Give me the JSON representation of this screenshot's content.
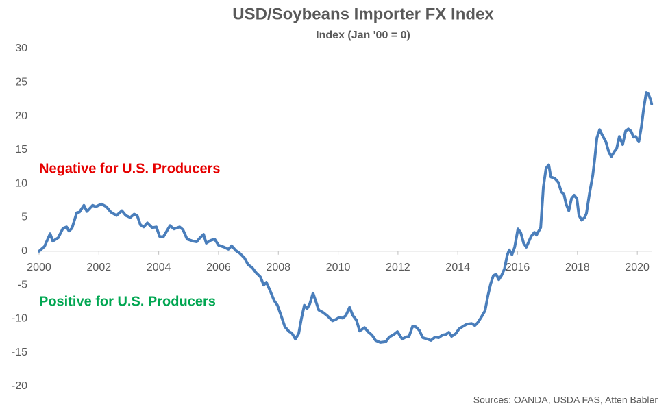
{
  "chart_data": {
    "type": "line",
    "title": "USD/Soybeans Importer FX Index",
    "subtitle": "Index (Jan '00 = 0)",
    "annotations": [
      {
        "text": "Negative for U.S. Producers",
        "color": "#e60000"
      },
      {
        "text": "Positive for U.S. Producers",
        "color": "#00a651"
      }
    ],
    "source": "Sources: OANDA, USDA FAS, Atten Babler",
    "color": "#4a7ebb",
    "xlim": [
      2000,
      2020.5
    ],
    "xticks": [
      2000,
      2002,
      2004,
      2006,
      2008,
      2010,
      2012,
      2014,
      2016,
      2018,
      2020
    ],
    "ylim": [
      -20,
      30
    ],
    "yticks": [
      -20,
      -15,
      -10,
      -5,
      0,
      5,
      10,
      15,
      20,
      25,
      30
    ],
    "x": [
      2000.0,
      2000.18,
      2000.37,
      2000.46,
      2000.64,
      2000.8,
      2000.92,
      2001.0,
      2001.1,
      2001.26,
      2001.35,
      2001.5,
      2001.6,
      2001.79,
      2001.9,
      2002.08,
      2002.25,
      2002.4,
      2002.59,
      2002.77,
      2002.9,
      2003.05,
      2003.18,
      2003.28,
      2003.39,
      2003.5,
      2003.62,
      2003.78,
      2003.92,
      2004.03,
      2004.15,
      2004.38,
      2004.51,
      2004.7,
      2004.81,
      2004.95,
      2005.15,
      2005.27,
      2005.38,
      2005.5,
      2005.59,
      2005.73,
      2005.87,
      2006.0,
      2006.19,
      2006.33,
      2006.44,
      2006.58,
      2006.71,
      2006.87,
      2006.99,
      2007.12,
      2007.26,
      2007.4,
      2007.51,
      2007.6,
      2007.74,
      2007.86,
      2007.97,
      2008.09,
      2008.22,
      2008.36,
      2008.45,
      2008.57,
      2008.68,
      2008.77,
      2008.87,
      2008.96,
      2009.05,
      2009.16,
      2009.26,
      2009.35,
      2009.51,
      2009.65,
      2009.81,
      2009.92,
      2010.03,
      2010.15,
      2010.26,
      2010.38,
      2010.49,
      2010.61,
      2010.72,
      2010.88,
      2011.02,
      2011.13,
      2011.25,
      2011.41,
      2011.59,
      2011.71,
      2011.87,
      2011.98,
      2012.14,
      2012.26,
      2012.37,
      2012.49,
      2012.6,
      2012.71,
      2012.83,
      2012.99,
      2013.1,
      2013.24,
      2013.36,
      2013.49,
      2013.61,
      2013.7,
      2013.79,
      2013.93,
      2014.04,
      2014.18,
      2014.3,
      2014.46,
      2014.57,
      2014.66,
      2014.78,
      2014.91,
      2015.01,
      2015.1,
      2015.19,
      2015.28,
      2015.37,
      2015.46,
      2015.56,
      2015.65,
      2015.72,
      2015.81,
      2015.9,
      2016.01,
      2016.1,
      2016.2,
      2016.29,
      2016.45,
      2016.56,
      2016.63,
      2016.77,
      2016.86,
      2016.95,
      2017.04,
      2017.11,
      2017.24,
      2017.36,
      2017.46,
      2017.55,
      2017.62,
      2017.71,
      2017.8,
      2017.89,
      2017.98,
      2018.05,
      2018.14,
      2018.24,
      2018.3,
      2018.4,
      2018.51,
      2018.58,
      2018.65,
      2018.74,
      2018.83,
      2018.95,
      2019.04,
      2019.13,
      2019.24,
      2019.31,
      2019.4,
      2019.51,
      2019.61,
      2019.7,
      2019.79,
      2019.88,
      2019.95,
      2020.05,
      2020.14,
      2020.21,
      2020.3,
      2020.37,
      2020.44,
      2020.48
    ],
    "values": [
      0,
      0.7,
      2.6,
      1.5,
      2.0,
      3.4,
      3.6,
      3.0,
      3.4,
      5.7,
      5.8,
      6.8,
      5.9,
      6.8,
      6.6,
      7.0,
      6.6,
      5.8,
      5.3,
      6.0,
      5.3,
      5.0,
      5.5,
      5.3,
      3.9,
      3.6,
      4.2,
      3.5,
      3.6,
      2.2,
      2.1,
      3.8,
      3.3,
      3.6,
      3.2,
      1.8,
      1.5,
      1.4,
      2.0,
      2.5,
      1.2,
      1.6,
      1.8,
      0.9,
      0.6,
      0.3,
      0.8,
      0.1,
      -0.3,
      -1.0,
      -2.0,
      -2.4,
      -3.2,
      -3.8,
      -5.0,
      -4.6,
      -6.0,
      -7.3,
      -8.0,
      -9.5,
      -11.2,
      -11.9,
      -12.1,
      -13.0,
      -12.2,
      -10.0,
      -8.0,
      -8.5,
      -7.8,
      -6.2,
      -7.5,
      -8.7,
      -9.1,
      -9.6,
      -10.3,
      -10.1,
      -9.8,
      -9.9,
      -9.5,
      -8.3,
      -9.5,
      -10.2,
      -11.8,
      -11.3,
      -12.0,
      -12.4,
      -13.2,
      -13.5,
      -13.4,
      -12.7,
      -12.3,
      -11.9,
      -13.0,
      -12.7,
      -12.6,
      -11.1,
      -11.2,
      -11.7,
      -12.8,
      -13.0,
      -13.2,
      -12.7,
      -12.8,
      -12.4,
      -12.3,
      -12.0,
      -12.6,
      -12.2,
      -11.5,
      -11.1,
      -10.8,
      -10.7,
      -11.0,
      -10.6,
      -9.8,
      -8.8,
      -6.5,
      -4.8,
      -3.6,
      -3.4,
      -4.2,
      -3.6,
      -2.6,
      -0.6,
      0.2,
      -0.5,
      0.6,
      3.3,
      2.8,
      1.2,
      0.6,
      2.2,
      2.8,
      2.4,
      3.5,
      9.5,
      12.3,
      12.8,
      11.0,
      10.8,
      10.2,
      8.8,
      8.4,
      7.0,
      6.0,
      7.8,
      8.3,
      7.8,
      5.3,
      4.6,
      5.0,
      5.6,
      8.5,
      11.2,
      13.8,
      16.8,
      18.0,
      17.2,
      16.2,
      14.8,
      14.0,
      14.8,
      15.2,
      17.0,
      15.8,
      17.8,
      18.1,
      17.8,
      16.9,
      17.0,
      16.2,
      18.5,
      21.0,
      23.5,
      23.3,
      22.5,
      21.8
    ]
  }
}
